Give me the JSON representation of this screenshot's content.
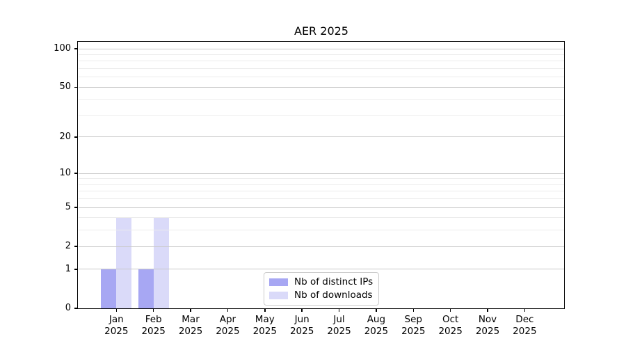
{
  "chart_data": {
    "type": "bar",
    "title": "AER 2025",
    "categories": [
      "Jan 2025",
      "Feb 2025",
      "Mar 2025",
      "Apr 2025",
      "May 2025",
      "Jun 2025",
      "Jul 2025",
      "Aug 2025",
      "Sep 2025",
      "Oct 2025",
      "Nov 2025",
      "Dec 2025"
    ],
    "series": [
      {
        "name": "Nb of distinct IPs",
        "color": "#a7a7f3",
        "values": [
          1,
          1,
          0,
          0,
          0,
          0,
          0,
          0,
          0,
          0,
          0,
          0
        ]
      },
      {
        "name": "Nb of downloads",
        "color": "#dadaf9",
        "values": [
          4,
          4,
          0,
          0,
          0,
          0,
          0,
          0,
          0,
          0,
          0,
          0
        ]
      }
    ],
    "xlabel": "",
    "ylabel": "",
    "yscale": "log1p",
    "ylim": [
      0,
      112
    ],
    "yticks": [
      100,
      50,
      20,
      10,
      5,
      2,
      1,
      0
    ],
    "minor_yticks": [
      90,
      80,
      70,
      60,
      40,
      30,
      9,
      8,
      7,
      6,
      4,
      3
    ],
    "grid": "both",
    "grid_over_bars": true,
    "legend_position": "lower center",
    "colors": {
      "major_grid": "#c9c9c9",
      "minor_grid": "#ececec",
      "axis": "#000000",
      "text": "#000000",
      "background": "#ffffff"
    }
  }
}
